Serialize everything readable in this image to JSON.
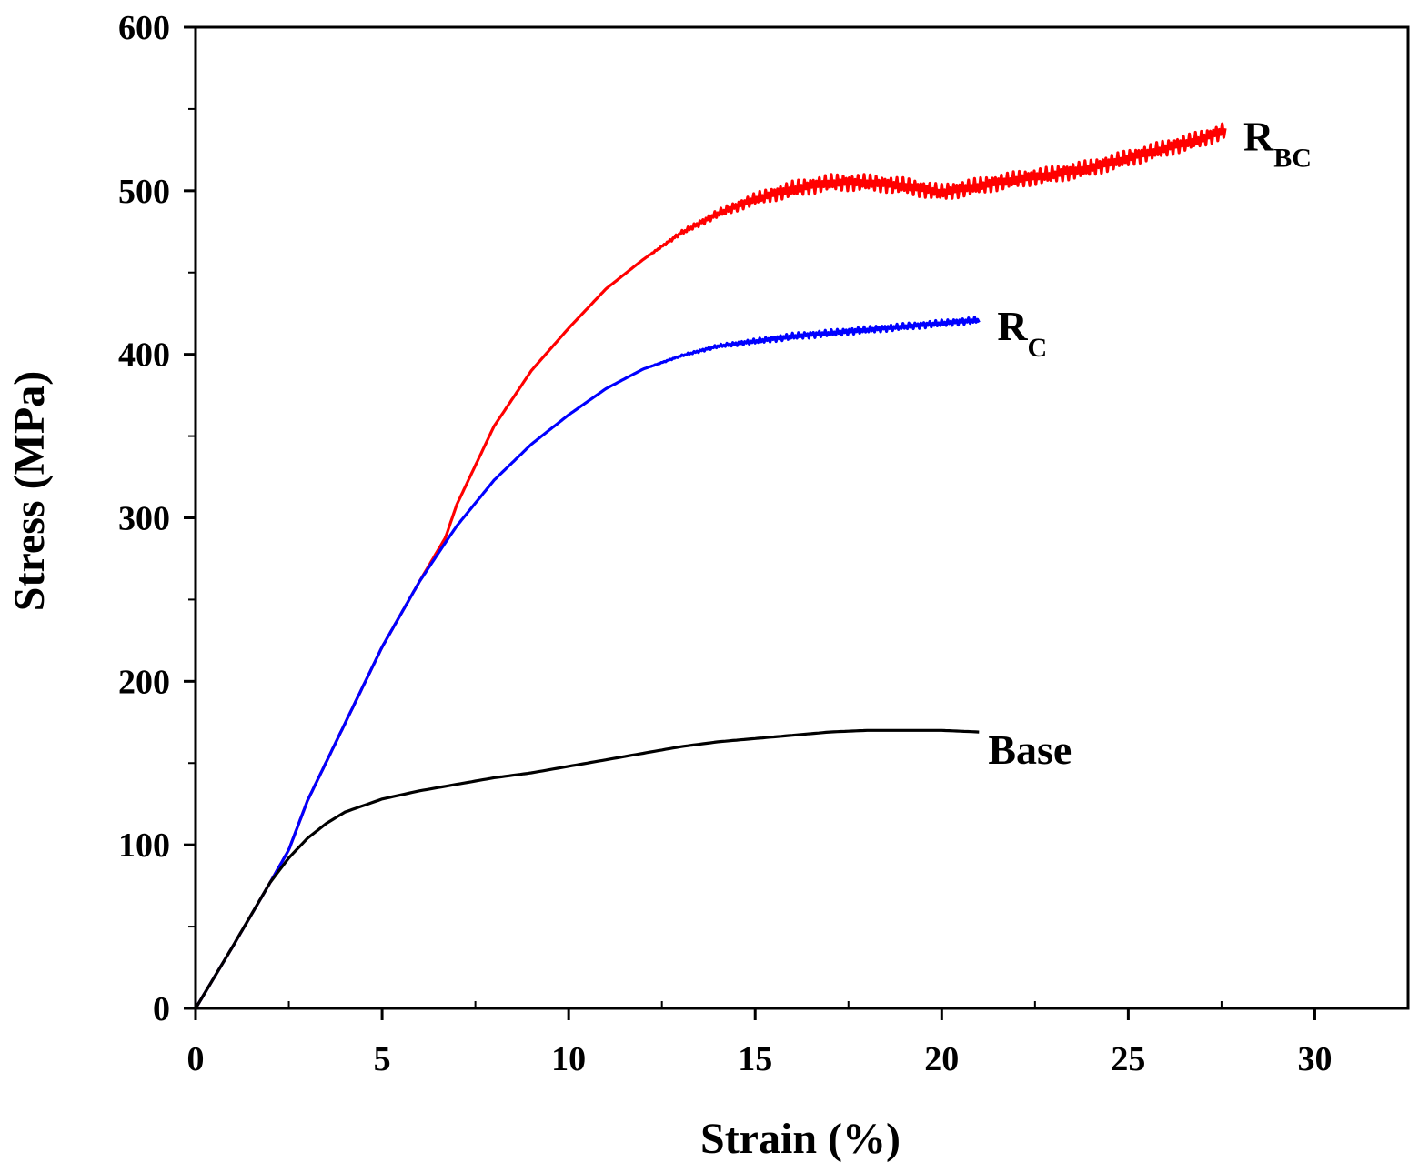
{
  "chart_data": {
    "type": "line",
    "xlabel": "Strain (%)",
    "ylabel": "Stress (MPa)",
    "xlim": [
      0,
      32.5
    ],
    "ylim": [
      0,
      600
    ],
    "xticks": [
      0,
      5,
      10,
      15,
      20,
      25,
      30
    ],
    "yticks": [
      0,
      100,
      200,
      300,
      400,
      500,
      600
    ],
    "x_minor_step": 2.5,
    "y_minor_step": 50,
    "grid": false,
    "series": [
      {
        "name": "Base",
        "label_main": "Base",
        "label_sub": "",
        "color": "#000000",
        "noise": 0,
        "points": [
          [
            0,
            0
          ],
          [
            1,
            38
          ],
          [
            2,
            77
          ],
          [
            2.5,
            92
          ],
          [
            3,
            104
          ],
          [
            3.5,
            113
          ],
          [
            4,
            120
          ],
          [
            5,
            128
          ],
          [
            6,
            133
          ],
          [
            7,
            137
          ],
          [
            8,
            141
          ],
          [
            9,
            144
          ],
          [
            10,
            148
          ],
          [
            11,
            152
          ],
          [
            12,
            156
          ],
          [
            13,
            160
          ],
          [
            14,
            163
          ],
          [
            15,
            165
          ],
          [
            16,
            167
          ],
          [
            17,
            169
          ],
          [
            18,
            170
          ],
          [
            19,
            170
          ],
          [
            20,
            170
          ],
          [
            21,
            169
          ]
        ]
      },
      {
        "name": "R_C",
        "label_main": "R",
        "label_sub": "C",
        "color": "#0000ff",
        "noise": 2,
        "points": [
          [
            0,
            0
          ],
          [
            1,
            38
          ],
          [
            2,
            77
          ],
          [
            2.5,
            97
          ],
          [
            3,
            127
          ],
          [
            4,
            174
          ],
          [
            5,
            221
          ],
          [
            6,
            261
          ],
          [
            6.7,
            285
          ],
          [
            7,
            295
          ],
          [
            8,
            323
          ],
          [
            9,
            345
          ],
          [
            10,
            363
          ],
          [
            11,
            379
          ],
          [
            12,
            391
          ],
          [
            13,
            399
          ],
          [
            14,
            405
          ],
          [
            15,
            408
          ],
          [
            16,
            411
          ],
          [
            17,
            413
          ],
          [
            18,
            415
          ],
          [
            19,
            417
          ],
          [
            20,
            419
          ],
          [
            21,
            421
          ]
        ]
      },
      {
        "name": "R_BC",
        "label_main": "R",
        "label_sub": "BC",
        "color": "#ff0000",
        "noise": 5,
        "points": [
          [
            0,
            0
          ],
          [
            1,
            38
          ],
          [
            2,
            77
          ],
          [
            2.5,
            97
          ],
          [
            3,
            127
          ],
          [
            4,
            174
          ],
          [
            5,
            221
          ],
          [
            6,
            261
          ],
          [
            6.7,
            288
          ],
          [
            7,
            308
          ],
          [
            8,
            356
          ],
          [
            9,
            390
          ],
          [
            10,
            416
          ],
          [
            11,
            440
          ],
          [
            12,
            458
          ],
          [
            13,
            474
          ],
          [
            14,
            486
          ],
          [
            15,
            495
          ],
          [
            16,
            501
          ],
          [
            17,
            505
          ],
          [
            18,
            505
          ],
          [
            19,
            503
          ],
          [
            20,
            499
          ],
          [
            21,
            503
          ],
          [
            22,
            507
          ],
          [
            23,
            510
          ],
          [
            24,
            514
          ],
          [
            25,
            520
          ],
          [
            26,
            526
          ],
          [
            27,
            532
          ],
          [
            27.6,
            537
          ]
        ]
      }
    ]
  }
}
